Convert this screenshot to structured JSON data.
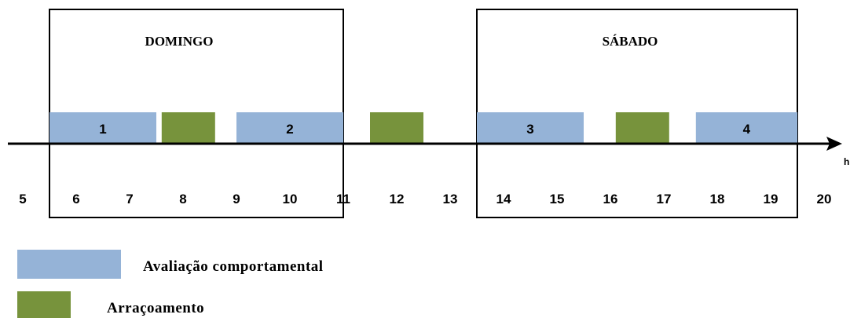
{
  "colors": {
    "behavior": "#95b3d7",
    "feeding": "#77933c",
    "axis": "#000000"
  },
  "days": {
    "sunday": "DOMINGO",
    "saturday": "SÁBADO"
  },
  "hour_labels": [
    "5",
    "6",
    "7",
    "8",
    "9",
    "10",
    "11",
    "12",
    "13",
    "14",
    "15",
    "16",
    "17",
    "18",
    "19",
    "20"
  ],
  "axis_unit": "h",
  "behavior_blocks": [
    {
      "label": "1",
      "start": 5.5,
      "end": 7.5
    },
    {
      "label": "2",
      "start": 9.0,
      "end": 11.0
    },
    {
      "label": "3",
      "start": 13.5,
      "end": 15.5
    },
    {
      "label": "4",
      "start": 17.6,
      "end": 19.5
    }
  ],
  "feeding_blocks": [
    {
      "start": 7.6,
      "end": 8.6
    },
    {
      "start": 11.5,
      "end": 12.5
    },
    {
      "start": 16.1,
      "end": 17.1
    }
  ],
  "brackets": [
    {
      "day": "sunday",
      "start": 5.5,
      "end": 11.0
    },
    {
      "day": "saturday",
      "start": 13.5,
      "end": 19.5
    }
  ],
  "legend": {
    "behavior": "Avaliação comportamental",
    "feeding": "Arraçoamento"
  }
}
